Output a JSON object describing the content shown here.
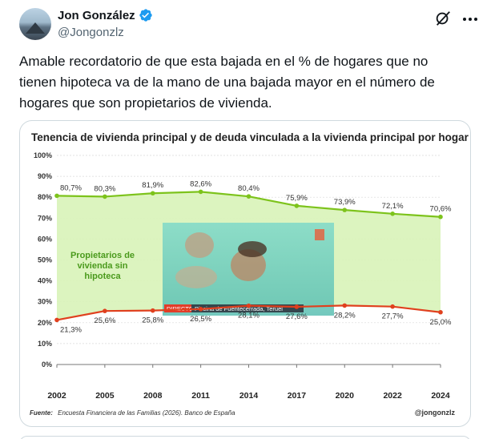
{
  "author": {
    "display_name": "Jon González",
    "handle": "@Jongonzlz"
  },
  "tweet": {
    "text": "Amable recordatorio de que esta bajada en el % de hogares que no tienen hipoteca va de la mano de una bajada mayor en el número de hogares que son propietarios de vivienda."
  },
  "icons": {
    "verified": "verified-badge-icon",
    "grok": "grok-icon",
    "more": "more-icon"
  },
  "colors": {
    "verified": "#1d9bf0",
    "series_owners": "#7dc31c",
    "series_no_mortgage": "#e0401e",
    "area_fill": "#d8f3b8"
  },
  "video_overlay": {
    "badge": "DIRECTO",
    "location": "Piscina de Fuentecerrada, Teruel"
  },
  "chart_data": {
    "type": "line",
    "title": "Tenencia de vivienda principal y de deuda vinculada a la vivienda principal por hogar",
    "x": [
      "2002",
      "2005",
      "2008",
      "2011",
      "2014",
      "2017",
      "2020",
      "2022",
      "2024"
    ],
    "series": [
      {
        "values": [
          80.7,
          80.3,
          81.9,
          82.6,
          80.4,
          75.9,
          73.9,
          72.1,
          70.6
        ],
        "labels": [
          "80,7%",
          "80,3%",
          "81,9%",
          "82,6%",
          "80,4%",
          "75,9%",
          "73,9%",
          "72,1%",
          "70,6%"
        ]
      },
      {
        "values": [
          21.3,
          25.6,
          25.8,
          26.5,
          28.1,
          27.6,
          28.2,
          27.7,
          25.0
        ],
        "labels": [
          "21,3%",
          "25,6%",
          "25,8%",
          "26,5%",
          "28,1%",
          "27,6%",
          "28,2%",
          "27,7%",
          "25,0%"
        ]
      }
    ],
    "area_label": [
      "Propietarios de",
      "vivienda sin",
      "hipoteca"
    ],
    "ylim": [
      0,
      100
    ],
    "yticks": [
      "0%",
      "10%",
      "20%",
      "30%",
      "40%",
      "50%",
      "60%",
      "70%",
      "80%",
      "90%",
      "100%"
    ],
    "grid": true,
    "source_label": "Fuente:",
    "source": "Encuesta Financiera de las Familias (2026). Banco de España",
    "credit": "@jongonzlz"
  }
}
